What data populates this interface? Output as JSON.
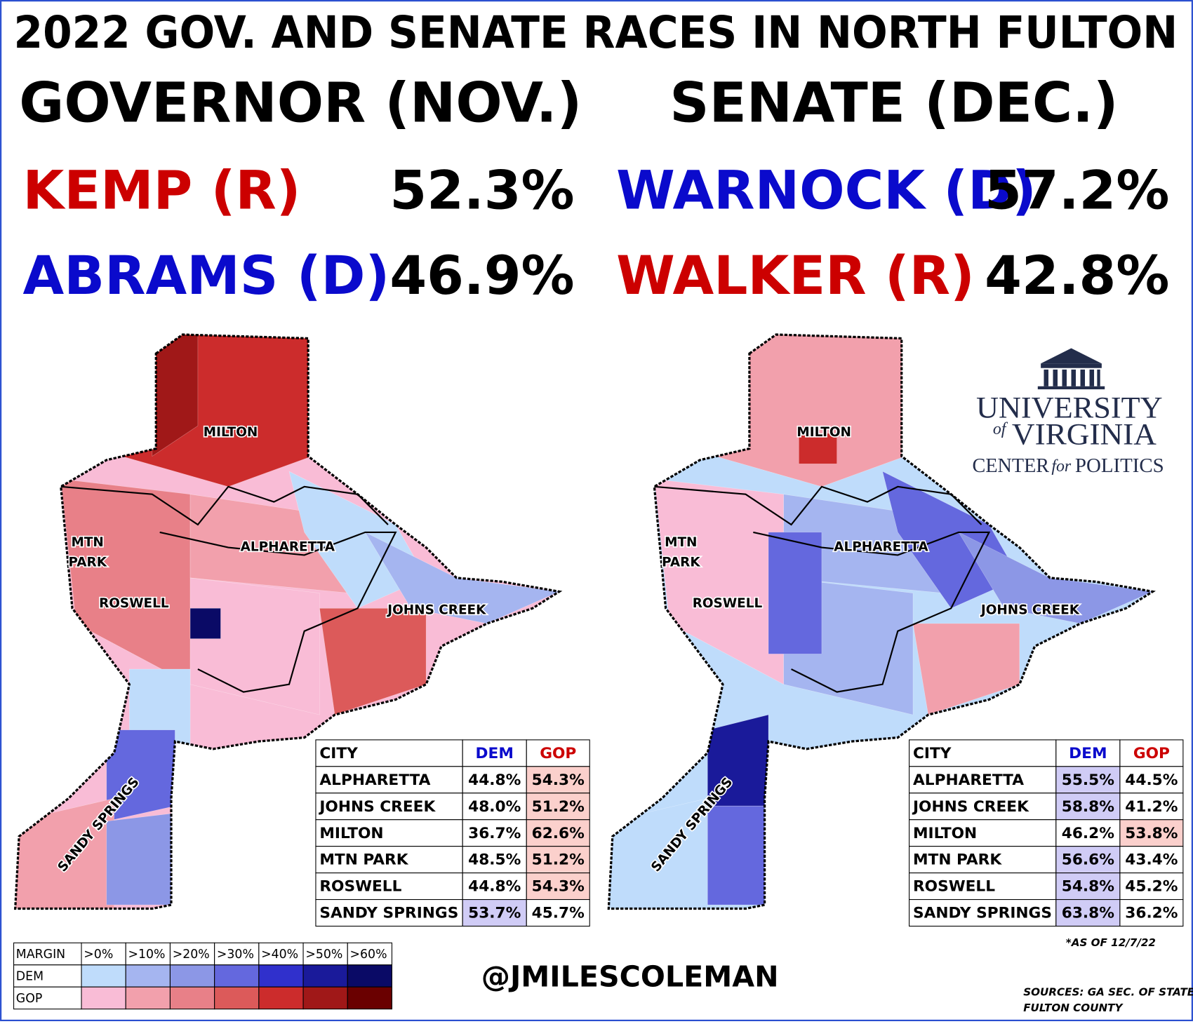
{
  "title": "2022 GOV. AND SENATE RACES IN NORTH FULTON",
  "races": [
    {
      "heading": "GOVERNOR (NOV.)",
      "candidates": [
        {
          "name": "KEMP (R)",
          "pct": "52.3%",
          "color": "#cc0000"
        },
        {
          "name": "ABRAMS (D)",
          "pct": "46.9%",
          "color": "#0a0acc"
        }
      ],
      "map_labels": [
        {
          "text": "MILTON"
        },
        {
          "text": "MTN\nPARK"
        },
        {
          "text": "ALPHARETTA"
        },
        {
          "text": "ROSWELL"
        },
        {
          "text": "JOHNS CREEK"
        },
        {
          "text": "SANDY SPRINGS"
        }
      ],
      "table": {
        "header": [
          "CITY",
          "DEM",
          "GOP"
        ],
        "rows": [
          [
            "ALPHARETTA",
            "44.8%",
            "54.3%"
          ],
          [
            "JOHNS CREEK",
            "48.0%",
            "51.2%"
          ],
          [
            "MILTON",
            "36.7%",
            "62.6%"
          ],
          [
            "MTN PARK",
            "48.5%",
            "51.2%"
          ],
          [
            "ROSWELL",
            "44.8%",
            "54.3%"
          ],
          [
            "SANDY SPRINGS",
            "53.7%",
            "45.7%"
          ]
        ]
      }
    },
    {
      "heading": "SENATE (DEC.)",
      "candidates": [
        {
          "name": "WARNOCK (D)",
          "pct": "57.2%",
          "color": "#0a0acc"
        },
        {
          "name": "WALKER (R)",
          "pct": "42.8%",
          "color": "#cc0000"
        }
      ],
      "map_labels": [
        {
          "text": "MILTON"
        },
        {
          "text": "MTN\nPARK"
        },
        {
          "text": "ALPHARETTA"
        },
        {
          "text": "ROSWELL"
        },
        {
          "text": "JOHNS CREEK"
        },
        {
          "text": "SANDY SPRINGS"
        }
      ],
      "table": {
        "header": [
          "CITY",
          "DEM",
          "GOP"
        ],
        "rows": [
          [
            "ALPHARETTA",
            "55.5%",
            "44.5%"
          ],
          [
            "JOHNS CREEK",
            "58.8%",
            "41.2%"
          ],
          [
            "MILTON",
            "46.2%",
            "53.8%"
          ],
          [
            "MTN PARK",
            "56.6%",
            "43.4%"
          ],
          [
            "ROSWELL",
            "54.8%",
            "45.2%"
          ],
          [
            "SANDY SPRINGS",
            "63.8%",
            "36.2%"
          ]
        ]
      }
    }
  ],
  "legend": {
    "header": [
      "MARGIN",
      ">0%",
      ">10%",
      ">20%",
      ">30%",
      ">40%",
      ">50%",
      ">60%"
    ],
    "rows": [
      {
        "label": "DEM",
        "colors": [
          "#bfdcfb",
          "#a5b5f0",
          "#8c97e6",
          "#6468de",
          "#3030cc",
          "#1a1a9a",
          "#0a0a66"
        ]
      },
      {
        "label": "GOP",
        "colors": [
          "#f9bcd6",
          "#f2a0ac",
          "#e88088",
          "#dc5a5a",
          "#cc2c2c",
          "#a01818",
          "#6a0000"
        ]
      }
    ]
  },
  "handle": "@JMILESCOLEMAN",
  "note": "*AS OF 12/7/22",
  "sources": [
    "SOURCES: GA SEC. OF STATE,",
    "FULTON COUNTY"
  ],
  "logo": {
    "line1": "UNIVERSITY",
    "of": "of",
    "line2": "VIRGINIA",
    "center": "CENTER",
    "for": "for",
    "politics": "POLITICS"
  }
}
